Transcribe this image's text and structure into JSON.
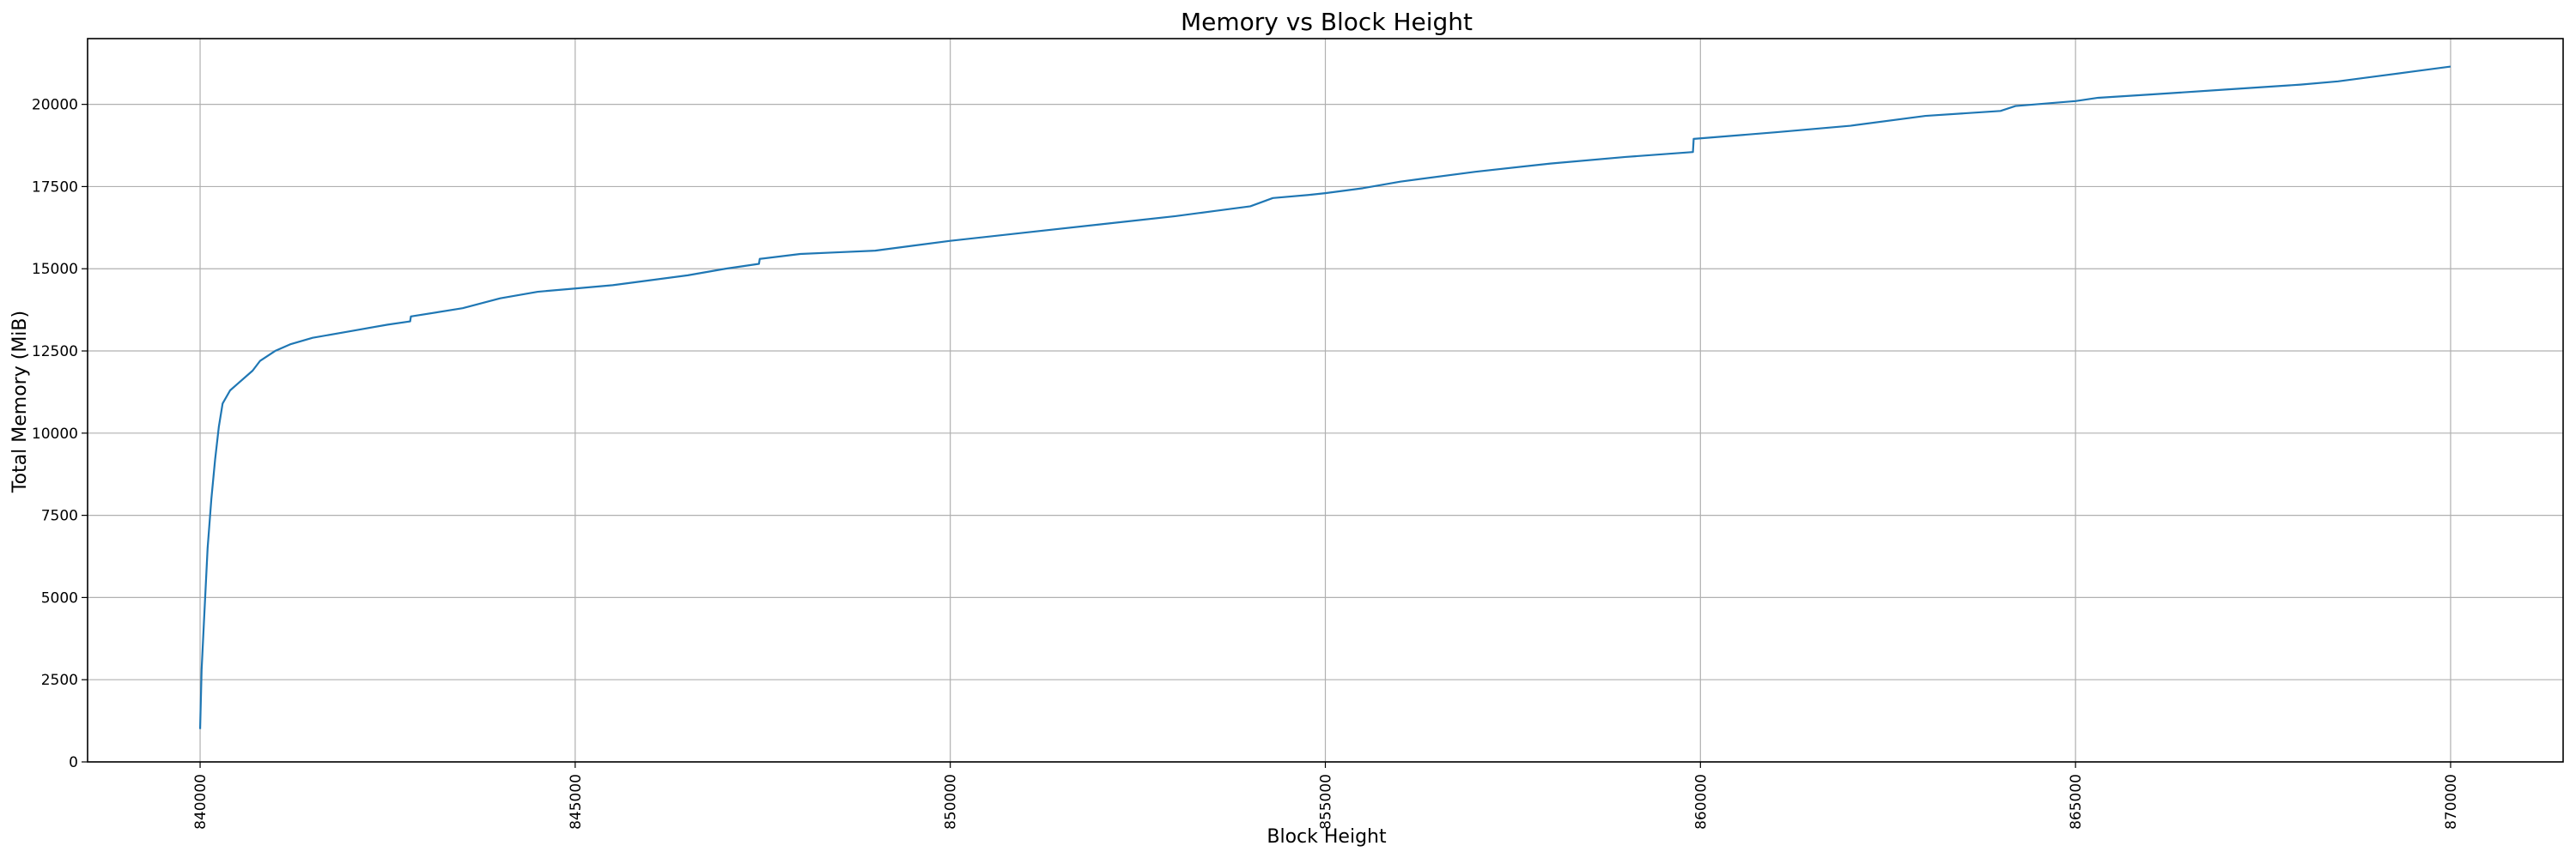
{
  "chart_data": {
    "type": "line",
    "title": "Memory vs Block Height",
    "xlabel": "Block Height",
    "ylabel": "Total Memory (MiB)",
    "xlim": [
      838500,
      871500
    ],
    "ylim": [
      0,
      22000
    ],
    "xticks": [
      840000,
      845000,
      850000,
      855000,
      860000,
      865000,
      870000
    ],
    "yticks": [
      0,
      2500,
      5000,
      7500,
      10000,
      12500,
      15000,
      17500,
      20000
    ],
    "grid": true,
    "legend": "none",
    "series": [
      {
        "color": "#1f77b4",
        "x": [
          840000,
          840020,
          840050,
          840100,
          840150,
          840200,
          840250,
          840300,
          840400,
          840500,
          840700,
          840800,
          841000,
          841200,
          841500,
          842000,
          842500,
          842800,
          842810,
          843500,
          844000,
          844500,
          845000,
          845500,
          846000,
          846500,
          847000,
          847450,
          847460,
          848000,
          848500,
          849000,
          849500,
          850000,
          851000,
          852000,
          853000,
          853500,
          854000,
          854300,
          854800,
          855000,
          855500,
          856000,
          857000,
          858000,
          859000,
          859900,
          859910,
          861000,
          862000,
          863000,
          864000,
          864200,
          865000,
          865300,
          866000,
          867000,
          868000,
          868500,
          869000,
          869500,
          870000
        ],
        "y": [
          1000,
          2800,
          4200,
          6500,
          8000,
          9200,
          10200,
          10900,
          11300,
          11500,
          11900,
          12200,
          12500,
          12700,
          12900,
          13100,
          13300,
          13400,
          13550,
          13800,
          14100,
          14300,
          14400,
          14500,
          14650,
          14800,
          15000,
          15150,
          15300,
          15450,
          15500,
          15550,
          15700,
          15850,
          16100,
          16350,
          16600,
          16750,
          16900,
          17150,
          17250,
          17300,
          17450,
          17650,
          17950,
          18200,
          18400,
          18550,
          18950,
          19150,
          19350,
          19650,
          19800,
          19950,
          20100,
          20200,
          20300,
          20450,
          20600,
          20700,
          20850,
          21000,
          21150
        ]
      }
    ]
  }
}
